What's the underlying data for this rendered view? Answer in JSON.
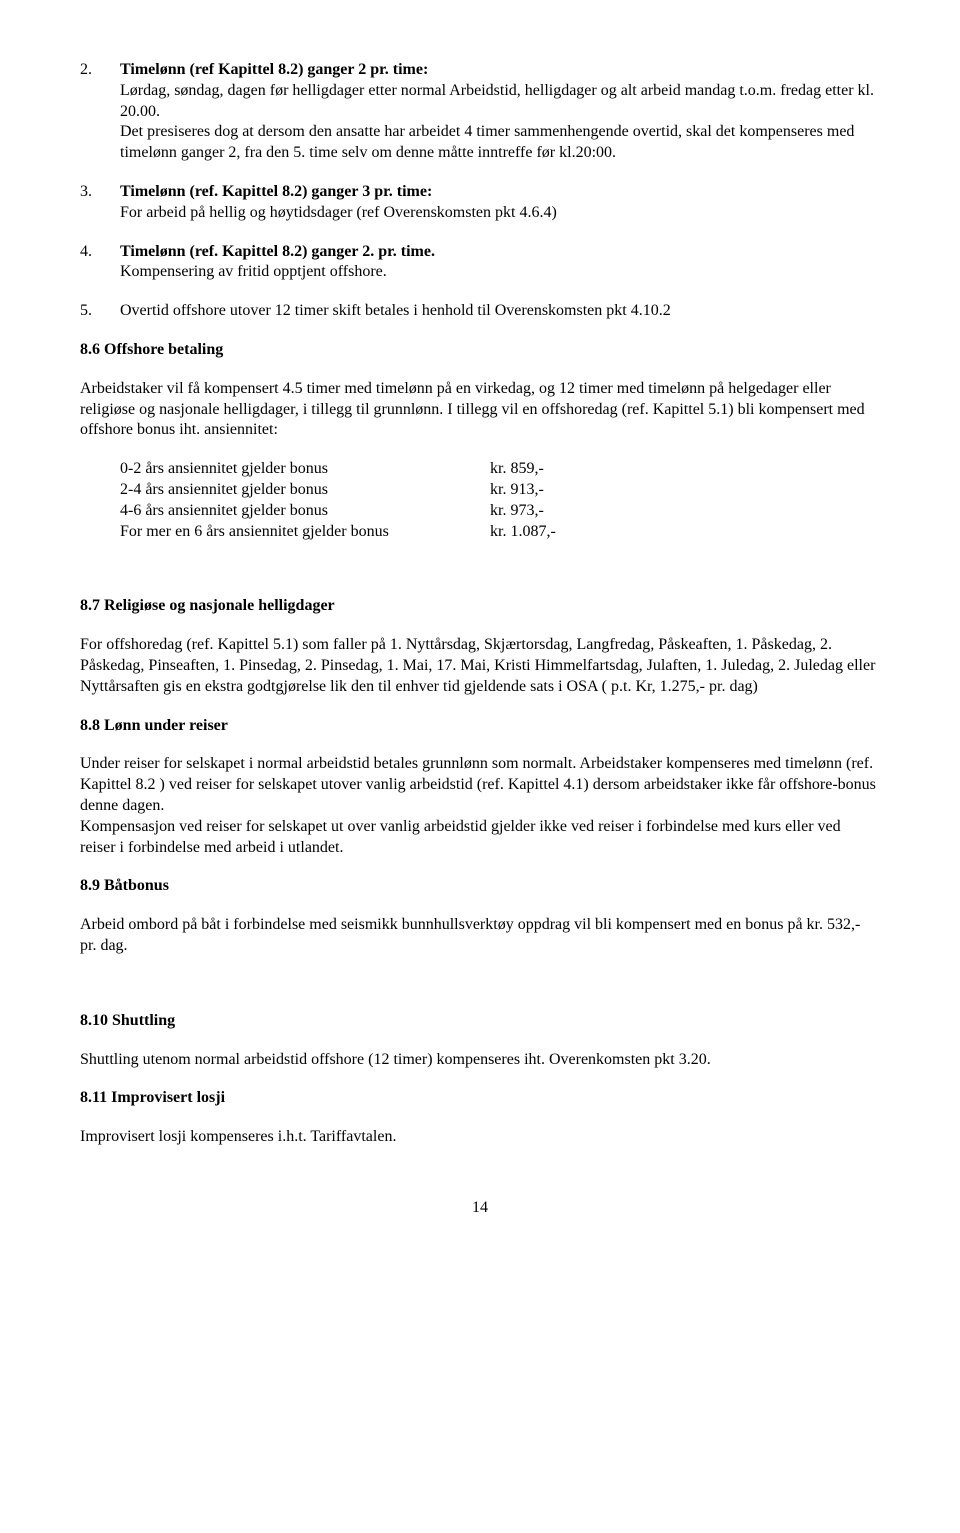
{
  "items": {
    "item2": {
      "num": "2.",
      "title": "Timelønn (ref Kapittel 8.2) ganger 2 pr. time:",
      "text": "Lørdag, søndag, dagen før helligdager etter normal Arbeidstid, helligdager og alt arbeid mandag t.o.m. fredag etter kl. 20.00.\nDet presiseres dog at dersom den ansatte har arbeidet 4 timer sammenhengende overtid, skal det kompenseres med timelønn ganger 2, fra den 5. time selv om denne måtte inntreffe før kl.20:00."
    },
    "item3": {
      "num": "3.",
      "title": "Timelønn (ref. Kapittel 8.2) ganger 3 pr. time:",
      "text": "For arbeid på hellig og høytidsdager (ref Overenskomsten pkt 4.6.4)"
    },
    "item4": {
      "num": "4.",
      "title": "Timelønn (ref. Kapittel 8.2) ganger 2. pr. time.",
      "text": "Kompensering av fritid opptjent offshore."
    },
    "item5": {
      "num": "5.",
      "text": "Overtid offshore utover 12 timer skift betales i henhold til Overenskomsten pkt 4.10.2"
    }
  },
  "sections": {
    "s86": {
      "heading": "8.6 Offshore betaling",
      "para": "Arbeidstaker vil få kompensert 4.5 timer med timelønn på en virkedag, og 12 timer med timelønn på helgedager eller religiøse og nasjonale helligdager, i tillegg til grunnlønn. I tillegg vil en offshoredag (ref. Kapittel 5.1) bli kompensert med offshore bonus iht. ansiennitet:",
      "bonus": [
        {
          "label": "0-2 års ansiennitet gjelder bonus",
          "value": "kr. 859,-"
        },
        {
          "label": "2-4 års ansiennitet gjelder bonus",
          "value": "kr. 913,-"
        },
        {
          "label": "4-6 års ansiennitet gjelder bonus",
          "value": "kr. 973,-"
        },
        {
          "label": "For mer en 6 års ansiennitet gjelder bonus",
          "value": "kr. 1.087,-"
        }
      ]
    },
    "s87": {
      "heading": "8.7 Religiøse og nasjonale helligdager",
      "para": "For offshoredag (ref. Kapittel 5.1) som faller på 1. Nyttårsdag, Skjærtorsdag, Langfredag, Påskeaften, 1. Påskedag, 2. Påskedag, Pinseaften, 1. Pinsedag, 2. Pinsedag, 1. Mai,  17. Mai, Kristi Himmelfartsdag, Julaften, 1. Juledag, 2. Juledag eller Nyttårsaften gis en ekstra godtgjørelse lik den til enhver tid gjeldende sats i OSA ( p.t. Kr, 1.275,- pr. dag)"
    },
    "s88": {
      "heading": "8.8 Lønn under reiser",
      "para": "Under reiser for selskapet i normal arbeidstid betales grunnlønn som normalt.  Arbeidstaker kompenseres med timelønn (ref. Kapittel 8.2 ) ved reiser for selskapet utover vanlig arbeidstid (ref. Kapittel 4.1) dersom arbeidstaker ikke får offshore-bonus denne dagen.\nKompensasjon ved reiser for selskapet ut over vanlig arbeidstid gjelder ikke ved reiser i forbindelse med kurs eller ved reiser i forbindelse med arbeid i utlandet."
    },
    "s89": {
      "heading": "8.9 Båtbonus",
      "para": "Arbeid ombord på båt i forbindelse med seismikk bunnhullsverktøy oppdrag vil bli kompensert med en bonus på kr. 532,- pr. dag."
    },
    "s810": {
      "heading": "8.10 Shuttling",
      "para": "Shuttling utenom normal arbeidstid offshore (12 timer) kompenseres iht. Overenkomsten pkt 3.20."
    },
    "s811": {
      "heading": "8.11 Improvisert losji",
      "para": "Improvisert losji kompenseres i.h.t. Tariffavtalen."
    }
  },
  "page_number": "14"
}
